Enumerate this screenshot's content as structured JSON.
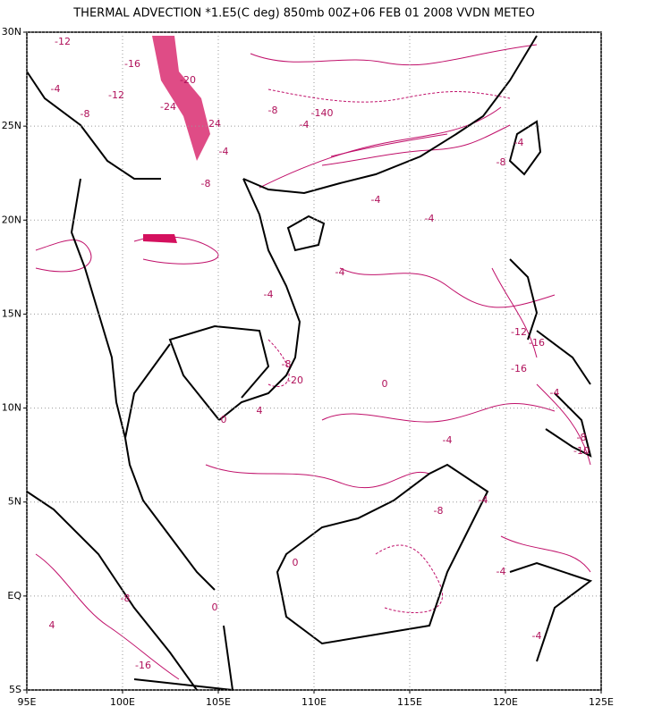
{
  "title": "THERMAL ADVECTION *1.E5(C deg) 850mb 00Z+06 FEB 01 2008 VVDN METEO",
  "lon_axis": {
    "lim": [
      95,
      125
    ],
    "ticks": [
      {
        "value": 95,
        "label": "95E"
      },
      {
        "value": 100,
        "label": "100E"
      },
      {
        "value": 105,
        "label": "105E"
      },
      {
        "value": 110,
        "label": "110E"
      },
      {
        "value": 115,
        "label": "115E"
      },
      {
        "value": 120,
        "label": "120E"
      },
      {
        "value": 125,
        "label": "125E"
      }
    ]
  },
  "lat_axis": {
    "lim": [
      -5,
      30
    ],
    "ticks": [
      {
        "value": 30,
        "label": "30N"
      },
      {
        "value": 25,
        "label": "25N"
      },
      {
        "value": 20,
        "label": "20N"
      },
      {
        "value": 15,
        "label": "15N"
      },
      {
        "value": 10,
        "label": "10N"
      },
      {
        "value": 5,
        "label": "5N"
      },
      {
        "value": 0,
        "label": "EQ"
      },
      {
        "value": -5,
        "label": "5S"
      }
    ]
  },
  "contour_labels": [
    "-12",
    "-16",
    "-24",
    "-20",
    "-12",
    "-4",
    "-8",
    "24",
    "-8",
    "-4",
    "-140",
    "-8",
    "-4",
    "-4",
    "-4",
    "-8",
    "-4",
    "-4",
    "0",
    "-4",
    "-8",
    "-12",
    "-16",
    "-16",
    "-20",
    "-4",
    "-8",
    "-10",
    "-4",
    "-4",
    "0",
    "4",
    "-8",
    "-16",
    "-4",
    "0",
    "-8",
    "4",
    "-4",
    "0"
  ]
}
